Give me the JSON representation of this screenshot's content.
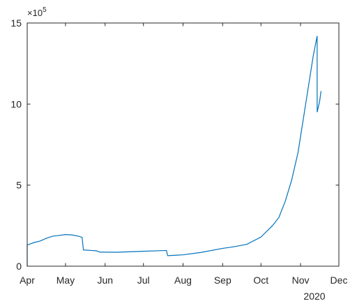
{
  "chart_data": {
    "type": "line",
    "title": "",
    "xlabel": "",
    "ylabel": "",
    "x_tick_labels": [
      "Apr",
      "May",
      "Jun",
      "Jul",
      "Aug",
      "Sep",
      "Oct",
      "Nov",
      "Dec"
    ],
    "x_ticks": [
      "2020-04-01",
      "2020-05-01",
      "2020-06-01",
      "2020-07-01",
      "2020-08-01",
      "2020-09-01",
      "2020-10-01",
      "2020-11-01",
      "2020-12-01"
    ],
    "x_year_label": "2020",
    "xlim": [
      "2020-04-01",
      "2020-12-01"
    ],
    "y_tick_labels": [
      "0",
      "5",
      "10",
      "15"
    ],
    "y_ticks": [
      0,
      500000,
      1000000,
      1500000
    ],
    "y_exponent_label": "×10",
    "y_exponent_power": "5",
    "ylim": [
      0,
      1500000
    ],
    "grid": false,
    "legend": "none",
    "series": [
      {
        "color": "#0072BD",
        "points": [
          [
            "2020-04-01",
            0
          ],
          [
            "2020-04-01",
            130000
          ],
          [
            "2020-04-06",
            145000
          ],
          [
            "2020-04-11",
            155000
          ],
          [
            "2020-04-16",
            172000
          ],
          [
            "2020-04-21",
            185000
          ],
          [
            "2020-04-26",
            190000
          ],
          [
            "2020-05-01",
            195000
          ],
          [
            "2020-05-06",
            193000
          ],
          [
            "2020-05-11",
            185000
          ],
          [
            "2020-05-14",
            178000
          ],
          [
            "2020-05-15",
            100000
          ],
          [
            "2020-05-25",
            95000
          ],
          [
            "2020-05-28",
            87000
          ],
          [
            "2020-06-10",
            86000
          ],
          [
            "2020-06-30",
            92000
          ],
          [
            "2020-07-19",
            97000
          ],
          [
            "2020-07-20",
            65000
          ],
          [
            "2020-08-01",
            70000
          ],
          [
            "2020-08-15",
            85000
          ],
          [
            "2020-09-01",
            110000
          ],
          [
            "2020-09-10",
            120000
          ],
          [
            "2020-09-20",
            135000
          ],
          [
            "2020-10-01",
            180000
          ],
          [
            "2020-10-10",
            250000
          ],
          [
            "2020-10-15",
            300000
          ],
          [
            "2020-10-20",
            400000
          ],
          [
            "2020-10-25",
            530000
          ],
          [
            "2020-10-30",
            700000
          ],
          [
            "2020-11-01",
            800000
          ],
          [
            "2020-11-05",
            1000000
          ],
          [
            "2020-11-08",
            1150000
          ],
          [
            "2020-11-11",
            1300000
          ],
          [
            "2020-11-13",
            1380000
          ],
          [
            "2020-11-14",
            1420000
          ],
          [
            "2020-11-14",
            950000
          ],
          [
            "2020-11-16",
            1020000
          ],
          [
            "2020-11-17",
            1080000
          ]
        ]
      }
    ]
  }
}
